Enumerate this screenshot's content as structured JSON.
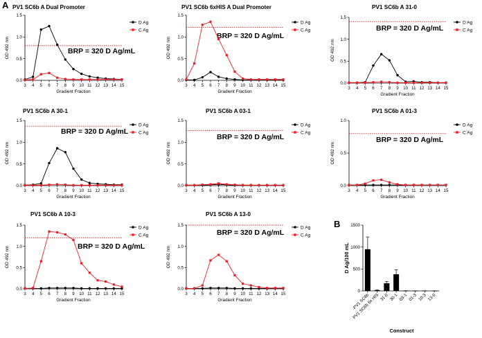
{
  "panel_labels": {
    "a": "A",
    "b": "B"
  },
  "colors": {
    "d_series": "#000000",
    "c_series": "#ee1c25",
    "brp_line": "#ee1c25",
    "bar": "#000000"
  },
  "chart_data": [
    {
      "type": "line",
      "title": "PV1 SC6b A Dual Promoter",
      "xlabel": "Gradient Fraction",
      "ylabel": "OD 492 nm",
      "x": [
        3,
        4,
        5,
        6,
        7,
        8,
        9,
        10,
        11,
        12,
        13,
        14,
        15
      ],
      "xlim": [
        3,
        15
      ],
      "ylim": [
        0,
        1.5
      ],
      "yticks": [
        "0.0",
        "0.5",
        "1.0",
        "1.5"
      ],
      "series": [
        {
          "name": "D Ag",
          "values": [
            0.02,
            0.08,
            1.17,
            1.25,
            0.82,
            0.48,
            0.26,
            0.15,
            0.09,
            0.06,
            0.04,
            0.03,
            0.02
          ]
        },
        {
          "name": "C Ag",
          "values": [
            0.01,
            0.02,
            0.14,
            0.17,
            0.06,
            0.03,
            0.02,
            0.02,
            0.02,
            0.02,
            0.02,
            0.02,
            0.02
          ]
        }
      ],
      "reference_line": {
        "y": 0.8,
        "label": "BRP = 320 D Ag/mL"
      }
    },
    {
      "type": "line",
      "title": "PV1 SC6b 6xHIS A Dual Promoter",
      "xlabel": "Gradient Fraction",
      "ylabel": "OD 492 nm",
      "x": [
        3,
        4,
        5,
        6,
        7,
        8,
        9,
        10,
        11,
        12,
        13,
        14,
        15
      ],
      "xlim": [
        3,
        15
      ],
      "ylim": [
        0,
        1.5
      ],
      "yticks": [
        "0.0",
        "0.5",
        "1.0",
        "1.5"
      ],
      "series": [
        {
          "name": "D Ag",
          "values": [
            0.01,
            0.01,
            0.07,
            0.19,
            0.08,
            0.04,
            0.02,
            0.01,
            0.01,
            0.01,
            0.01,
            0.01,
            0.01
          ]
        },
        {
          "name": "C Ag",
          "values": [
            0.02,
            0.39,
            1.28,
            1.35,
            0.95,
            0.58,
            0.2,
            0.04,
            0.02,
            0.02,
            0.02,
            0.02,
            0.02
          ]
        }
      ],
      "reference_line": {
        "y": 1.22,
        "label": "BRP = 320 D Ag/mL"
      }
    },
    {
      "type": "line",
      "title": "PV1 SC6b A 31-0",
      "xlabel": "Gradient Fraction",
      "ylabel": "OD 492 nm",
      "x": [
        3,
        4,
        5,
        6,
        7,
        8,
        9,
        10,
        11,
        12,
        13,
        14,
        15
      ],
      "xlim": [
        3,
        15
      ],
      "ylim": [
        0,
        1.5
      ],
      "yticks": [
        "0.0",
        "0.5",
        "1.0",
        "1.5"
      ],
      "series": [
        {
          "name": "D Ag",
          "values": [
            0.01,
            0.01,
            0.02,
            0.4,
            0.66,
            0.52,
            0.18,
            0.03,
            0.04,
            0.02,
            0.02,
            0.01,
            0.01
          ]
        },
        {
          "name": "C Ag",
          "values": [
            0.01,
            0.01,
            0.01,
            0.02,
            0.03,
            0.02,
            0.01,
            0.01,
            0.01,
            0.01,
            0.01,
            0.01,
            0.01
          ]
        }
      ],
      "reference_line": {
        "y": 1.4,
        "label": "BRP = 320 D Ag/mL"
      }
    },
    {
      "type": "line",
      "title": "PV1 SC6b A 30-1",
      "xlabel": "Gradient Fraction",
      "ylabel": "OD 492 nm",
      "x": [
        3,
        4,
        5,
        6,
        7,
        8,
        9,
        10,
        11,
        12,
        13,
        14,
        15
      ],
      "xlim": [
        3,
        15
      ],
      "ylim": [
        0,
        1.5
      ],
      "yticks": [
        "0.0",
        "0.5",
        "1.0",
        "1.5"
      ],
      "series": [
        {
          "name": "D Ag",
          "values": [
            0.01,
            0.02,
            0.05,
            0.52,
            0.86,
            0.77,
            0.39,
            0.14,
            0.06,
            0.04,
            0.03,
            0.02,
            0.02
          ]
        },
        {
          "name": "C Ag",
          "values": [
            0.01,
            0.01,
            0.01,
            0.02,
            0.03,
            0.02,
            0.01,
            0.01,
            0.01,
            0.01,
            0.01,
            0.01,
            0.01
          ]
        }
      ],
      "reference_line": {
        "y": 1.37,
        "label": "BRP = 320 D Ag/mL"
      }
    },
    {
      "type": "line",
      "title": "PV1 SC6b A 03-1",
      "xlabel": "Gradient Fraction",
      "ylabel": "OD 492 nm",
      "x": [
        3,
        4,
        5,
        6,
        7,
        8,
        9,
        10,
        11,
        12,
        13,
        14,
        15
      ],
      "xlim": [
        3,
        15
      ],
      "ylim": [
        0,
        1.5
      ],
      "yticks": [
        "0.0",
        "0.5",
        "1.0",
        "1.5"
      ],
      "series": [
        {
          "name": "D Ag",
          "values": [
            0.01,
            0.01,
            0.01,
            0.02,
            0.03,
            0.02,
            0.01,
            0.01,
            0.01,
            0.01,
            0.01,
            0.01,
            0.01
          ]
        },
        {
          "name": "C Ag",
          "values": [
            0.01,
            0.01,
            0.02,
            0.03,
            0.05,
            0.03,
            0.02,
            0.01,
            0.01,
            0.01,
            0.01,
            0.01,
            0.01
          ]
        }
      ],
      "reference_line": {
        "y": 1.27,
        "label": "BRP = 320 D Ag/mL"
      }
    },
    {
      "type": "line",
      "title": "PV1 SC6b A 01-3",
      "xlabel": "Gradient Fraction",
      "ylabel": "OD 492 nm",
      "x": [
        3,
        4,
        5,
        6,
        7,
        8,
        9,
        10,
        11,
        12,
        13,
        14,
        15
      ],
      "xlim": [
        3,
        15
      ],
      "ylim": [
        0,
        1.0
      ],
      "yticks": [
        "0.0",
        "0.5",
        "1.0"
      ],
      "series": [
        {
          "name": "D Ag",
          "values": [
            0.01,
            0.01,
            0.01,
            0.01,
            0.01,
            0.01,
            0.01,
            0.01,
            0.01,
            0.01,
            0.01,
            0.01,
            0.01
          ]
        },
        {
          "name": "C Ag",
          "values": [
            0.01,
            0.01,
            0.03,
            0.08,
            0.09,
            0.05,
            0.02,
            0.01,
            0.01,
            0.01,
            0.01,
            0.01,
            0.01
          ]
        }
      ],
      "reference_line": {
        "y": 0.8,
        "label": "BRP = 320 D Ag/mL"
      }
    },
    {
      "type": "line",
      "title": "PV1 SC6b A 10-3",
      "xlabel": "Gradient Fraction",
      "ylabel": "OD 492 nm",
      "x": [
        3,
        4,
        5,
        6,
        7,
        8,
        9,
        10,
        11,
        12,
        13,
        14,
        15
      ],
      "xlim": [
        3,
        15
      ],
      "ylim": [
        0,
        1.5
      ],
      "yticks": [
        "0.0",
        "0.5",
        "1.0",
        "1.5"
      ],
      "series": [
        {
          "name": "D Ag",
          "values": [
            0.01,
            0.01,
            0.01,
            0.02,
            0.02,
            0.02,
            0.02,
            0.01,
            0.01,
            0.01,
            0.01,
            0.01,
            0.01
          ]
        },
        {
          "name": "C Ag",
          "values": [
            0.01,
            0.02,
            0.65,
            1.35,
            1.33,
            1.28,
            1.15,
            0.6,
            0.38,
            0.2,
            0.17,
            0.1,
            0.05
          ]
        }
      ],
      "reference_line": {
        "y": 1.2,
        "label": "BRP = 320 D Ag/mL"
      }
    },
    {
      "type": "line",
      "title": "PV1 SC6b A 13-0",
      "xlabel": "Gradient Fraction",
      "ylabel": "OD 492 nm",
      "x": [
        3,
        4,
        5,
        6,
        7,
        8,
        9,
        10,
        11,
        12,
        13,
        14,
        15
      ],
      "xlim": [
        3,
        15
      ],
      "ylim": [
        0,
        1.5
      ],
      "yticks": [
        "0.0",
        "0.5",
        "1.0",
        "1.5"
      ],
      "series": [
        {
          "name": "D Ag",
          "values": [
            0.01,
            0.01,
            0.01,
            0.02,
            0.02,
            0.02,
            0.01,
            0.01,
            0.01,
            0.01,
            0.01,
            0.01,
            0.01
          ]
        },
        {
          "name": "C Ag",
          "values": [
            0.01,
            0.01,
            0.08,
            0.67,
            0.8,
            0.65,
            0.32,
            0.12,
            0.08,
            0.04,
            0.02,
            0.02,
            0.02
          ]
        }
      ],
      "reference_line": {
        "y": 1.5,
        "label": "BRP = 320 D Ag/mL"
      }
    },
    {
      "type": "bar",
      "title": "",
      "xlabel": "Construct",
      "ylabel": "D Ag/100 mL",
      "categories": [
        "PV1 SC6b",
        "PV1 SC6b 6x HIS",
        "31-0",
        "30-1",
        "03-1",
        "01-3",
        "10-3",
        "13-0"
      ],
      "values": [
        950,
        15,
        175,
        380,
        3,
        2,
        2,
        2
      ],
      "errors": [
        280,
        5,
        40,
        100,
        2,
        1,
        1,
        1
      ],
      "ylim": [
        0,
        1500
      ],
      "yticks": [
        "0",
        "500",
        "1000",
        "1500"
      ]
    }
  ]
}
